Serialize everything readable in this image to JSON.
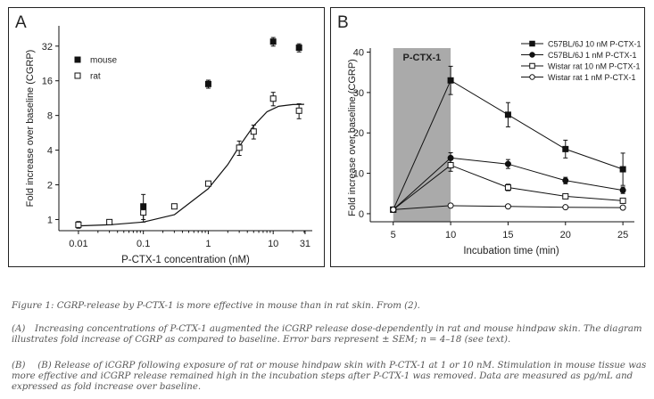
{
  "panels": [
    {
      "letter": "A",
      "chart_data": {
        "type": "scatter",
        "xscale": "log",
        "yscale": "log2",
        "xlabel": "P-CTX-1 concentration (nM)",
        "ylabel": "Fold increase over baseline (CGRP)",
        "xticks": [
          "0.01",
          "0.1",
          "1",
          "10",
          "31"
        ],
        "xtick_values": [
          0.01,
          0.1,
          1,
          10,
          31
        ],
        "yticks": [
          "1",
          "2",
          "4",
          "8",
          "16",
          "32"
        ],
        "ytick_values": [
          1,
          2,
          4,
          8,
          16,
          32
        ],
        "xlim": [
          0.005,
          40
        ],
        "ylim": [
          0.8,
          48
        ],
        "legend_position": "top-left",
        "series": [
          {
            "name": "mouse",
            "marker": "filled-square",
            "points": [
              [
                0.1,
                1.3,
                0.35
              ],
              [
                1,
                15,
                1.2
              ],
              [
                10,
                35,
                3
              ],
              [
                25,
                31,
                2.5
              ]
            ]
          },
          {
            "name": "rat",
            "marker": "open-square",
            "points": [
              [
                0.01,
                0.9,
                0.06
              ],
              [
                0.03,
                0.95,
                0.04
              ],
              [
                0.1,
                1.15,
                0.15
              ],
              [
                0.3,
                1.3,
                0.05
              ],
              [
                1,
                2.05,
                0.05
              ],
              [
                3,
                4.2,
                0.6
              ],
              [
                5,
                5.8,
                0.8
              ],
              [
                10,
                11.2,
                1.5
              ],
              [
                25,
                8.8,
                1.3
              ]
            ]
          },
          {
            "name": "",
            "type": "line",
            "smooth": true,
            "x": [
              0.01,
              0.03,
              0.1,
              0.3,
              1,
              2,
              3,
              5,
              8,
              12,
              20,
              30
            ],
            "y": [
              0.88,
              0.9,
              0.95,
              1.1,
              1.85,
              3.0,
              4.3,
              6.5,
              8.6,
              9.6,
              9.95,
              10.0
            ]
          }
        ]
      }
    },
    {
      "letter": "B",
      "chart_data": {
        "type": "line",
        "xlabel": "Incubation time (min)",
        "ylabel": "Fold increase over baseline (CGRP)",
        "xticks": [
          "5",
          "10",
          "15",
          "20",
          "25"
        ],
        "xtick_values": [
          5,
          10,
          15,
          20,
          25
        ],
        "yticks": [
          "0",
          "10",
          "20",
          "30",
          "40"
        ],
        "ytick_values": [
          0,
          10,
          20,
          30,
          40
        ],
        "xlim": [
          3,
          26
        ],
        "ylim": [
          -2,
          41
        ],
        "shaded_region": {
          "label": "P-CTX-1",
          "x": [
            5,
            10
          ],
          "color": "#aaaaaa"
        },
        "legend_position": "top-right",
        "x": [
          5,
          10,
          15,
          20,
          25
        ],
        "series": [
          {
            "name": "C57BL/6J 10 nM P-CTX-1",
            "marker": "filled-square",
            "values": [
              1,
              33,
              24.5,
              16,
              11
            ],
            "errors": [
              0,
              3.5,
              3,
              2.2,
              4
            ]
          },
          {
            "name": "C57BL/6J 1 nM P-CTX-1",
            "marker": "filled-circle",
            "values": [
              1,
              13.8,
              12.3,
              8.2,
              5.8
            ],
            "errors": [
              0,
              1.3,
              1.1,
              0.8,
              0.8
            ]
          },
          {
            "name": "Wistar rat 10 nM P-CTX-1",
            "marker": "open-square",
            "values": [
              1,
              12,
              6.5,
              4.3,
              3.2
            ],
            "errors": [
              0,
              1.5,
              0.8,
              0.4,
              0.5
            ]
          },
          {
            "name": "Wistar rat 1 nM P-CTX-1",
            "marker": "open-circle",
            "values": [
              1,
              2,
              1.8,
              1.6,
              1.5
            ],
            "errors": [
              0,
              0.2,
              0.2,
              0.15,
              0.15
            ]
          }
        ]
      }
    }
  ],
  "caption": {
    "title": "Figure 1:  CGRP-release by P-CTX-1 is more effective in mouse than in rat skin. From (2).",
    "items": [
      {
        "tag": "(A)",
        "text": "Increasing concentrations of P-CTX-1 augmented the iCGRP release dose-dependently in rat and mouse hindpaw skin. The diagram illustrates fold increase of CGRP as compared to baseline. Error bars represent ± SEM; n = 4–18 (see text)."
      },
      {
        "tag": "(B)",
        "text": " (B) Release of iCGRP following exposure of rat or mouse hindpaw skin with P-CTX-1 at 1 or 10 nM. Stimulation in mouse tissue was more effective and iCGRP release remained high in the incubation steps after P-CTX-1 was removed. Data are measured as pg/mL and expressed as fold increase over baseline."
      }
    ]
  }
}
